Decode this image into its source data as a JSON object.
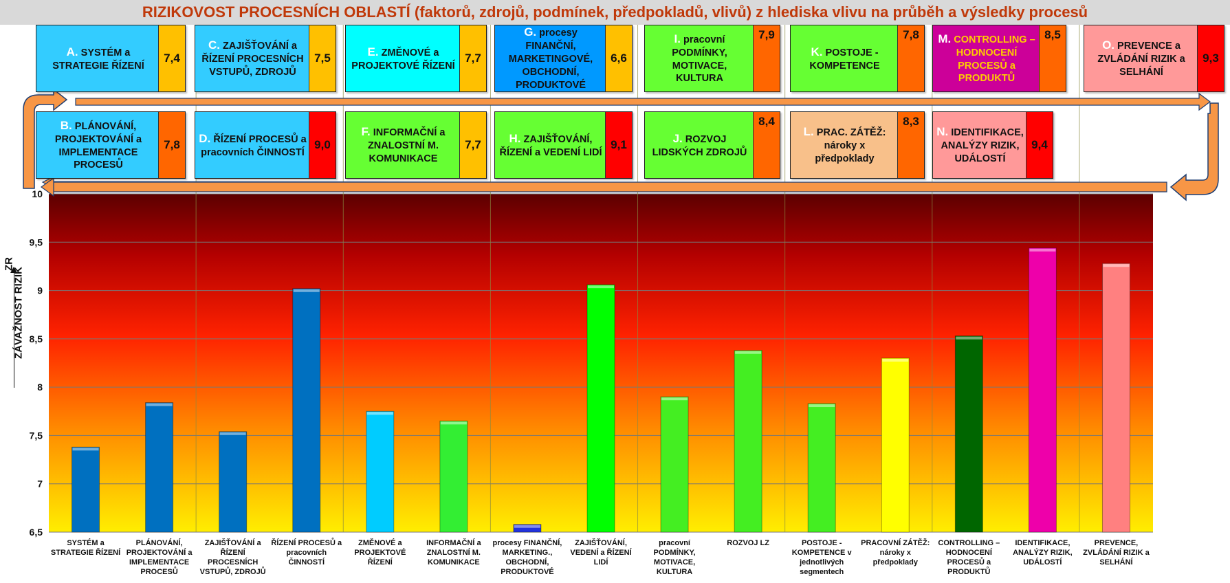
{
  "title": "RIZIKOVOST PROCESNÍCH OBLASTÍ (faktorů, zdrojů, podmínek, předpokladů, vlivů) z hlediska vlivu na průběh a výsledky procesů",
  "y_axis": {
    "label": "ZÁVAŽNOST RIZIK",
    "unit": "ZR"
  },
  "colors": {
    "title": "#c0390a",
    "arrow_fill": "#f79646",
    "arrow_stroke": "#1f3f73",
    "score_yellow": "#ffc000",
    "score_orange": "#ff6600",
    "score_red": "#ff0000",
    "gradient_top": "#5c0000",
    "gradient_mid": "#ff2200",
    "gradient_bottom": "#ffee00"
  },
  "cards": [
    {
      "id": "A",
      "letter": "A.",
      "label": "SYSTÉM a STRATEGIE ŘÍZENÍ",
      "score": "7,4",
      "bg": "#33ccff",
      "score_bg": "#ffc000",
      "text_color": "#111111"
    },
    {
      "id": "C",
      "letter": "C.",
      "label": "ZAJIŠŤOVÁNÍ a ŘÍZENÍ PROCESNÍCH VSTUPŮ, ZDROJŮ",
      "score": "7,5",
      "bg": "#33ccff",
      "score_bg": "#ffc000",
      "text_color": "#111111"
    },
    {
      "id": "E",
      "letter": "E.",
      "label": "ZMĚNOVÉ a PROJEKTOVÉ ŘÍZENÍ",
      "score": "7,7",
      "bg": "#00ffff",
      "score_bg": "#ffc000",
      "text_color": "#111111"
    },
    {
      "id": "G",
      "letter": "G.",
      "label": "procesy FINANČNÍ, MARKETINGOVÉ, OBCHODNÍ, PRODUKTOVÉ",
      "score": "6,6",
      "bg": "#0099ff",
      "score_bg": "#ffc000",
      "text_color": "#111111"
    },
    {
      "id": "I",
      "letter": "I.",
      "label": "pracovní PODMÍNKY, MOTIVACE, KULTURA",
      "score": "7,9",
      "bg": "#66ff33",
      "score_bg": "#ff6600",
      "text_color": "#111111"
    },
    {
      "id": "K",
      "letter": "K.",
      "label": "POSTOJE - KOMPETENCE",
      "score": "7,8",
      "bg": "#66ff33",
      "score_bg": "#ff6600",
      "text_color": "#111111"
    },
    {
      "id": "M",
      "letter": "M.",
      "label": "CONTROLLING – HODNOCENÍ PROCESŮ a PRODUKTŮ",
      "score": "8,5",
      "bg": "#cc0099",
      "score_bg": "#ff6600",
      "text_color": "#ffcc00"
    },
    {
      "id": "O",
      "letter": "O.",
      "label": "PREVENCE a ZVLÁDÁNÍ RIZIK a SELHÁNÍ",
      "score": "9,3",
      "bg": "#ff9999",
      "score_bg": "#ff0000",
      "text_color": "#111111"
    },
    {
      "id": "B",
      "letter": "B.",
      "label": "PLÁNOVÁNÍ, PROJEKTOVÁNÍ a IMPLEMENTACE PROCESŮ",
      "score": "7,8",
      "bg": "#33ccff",
      "score_bg": "#ff6600",
      "text_color": "#111111"
    },
    {
      "id": "D",
      "letter": "D.",
      "label": "ŘÍZENÍ PROCESŮ a pracovních ČINNOSTÍ",
      "score": "9,0",
      "bg": "#33ccff",
      "score_bg": "#ff0000",
      "text_color": "#111111"
    },
    {
      "id": "F",
      "letter": "F.",
      "label": "INFORMAČNÍ a ZNALOSTNÍ M. KOMUNIKACE",
      "score": "7,7",
      "bg": "#66ff33",
      "score_bg": "#ffc000",
      "text_color": "#111111"
    },
    {
      "id": "H",
      "letter": "H.",
      "label": "ZAJIŠŤOVÁNÍ, ŘÍZENÍ a VEDENÍ LIDÍ",
      "score": "9,1",
      "bg": "#66ff33",
      "score_bg": "#ff0000",
      "text_color": "#111111"
    },
    {
      "id": "J",
      "letter": "J.",
      "label": "ROZVOJ LIDSKÝCH ZDROJŮ",
      "score": "8,4",
      "bg": "#66ff33",
      "score_bg": "#ff6600",
      "text_color": "#111111"
    },
    {
      "id": "L",
      "letter": "L.",
      "label": "PRAC. ZÁTĚŽ: nároky x předpoklady",
      "score": "8,3",
      "bg": "#f8c08a",
      "score_bg": "#ff6600",
      "text_color": "#111111"
    },
    {
      "id": "N",
      "letter": "N.",
      "label": "IDENTIFIKACE, ANALÝZY RIZIK, UDÁLOSTÍ",
      "score": "9,4",
      "bg": "#ff9999",
      "score_bg": "#ff0000",
      "text_color": "#111111"
    }
  ],
  "chart_data": {
    "type": "bar",
    "title": "",
    "xlabel": "",
    "ylabel": "ZÁVAŽNOST RIZIK",
    "ylim": [
      6.5,
      10
    ],
    "yticks": [
      6.5,
      7,
      7.5,
      8,
      8.5,
      9,
      9.5,
      10
    ],
    "ytick_labels": [
      "6,5",
      "7",
      "7,5",
      "8",
      "8,5",
      "9",
      "9,5",
      "10"
    ],
    "grid": true,
    "legend": "none",
    "categories": [
      "SYSTÉM a STRATEGIE ŘÍZENÍ",
      "PLÁNOVÁNÍ, PROJEKTOVÁNÍ a IMPLEMENTACE PROCESŮ",
      "ZAJIŠŤOVÁNÍ a ŘÍZENÍ PROCESNÍCH VSTUPŮ, ZDROJŮ",
      "ŘÍZENÍ PROCESŮ a pracovních ČINNOSTÍ",
      "ZMĚNOVÉ a PROJEKTOVÉ ŘÍZENÍ",
      "INFORMAČNÍ a ZNALOSTNÍ M. KOMUNIKACE",
      "procesy FINANČNÍ, MARKETING., OBCHODNÍ, PRODUKTOVÉ",
      "ZAJIŠŤOVÁNÍ, VEDENÍ a ŘÍZENÍ LIDÍ",
      "pracovní PODMÍNKY, MOTIVACE, KULTURA",
      "ROZVOJ LZ",
      "POSTOJE - KOMPETENCE v jednotlivých segmentech",
      "PRACOVNÍ ZÁTĚŽ: nároky x předpoklady",
      "CONTROLLING – HODNOCENÍ PROCESŮ a PRODUKTŮ",
      "IDENTIFIKACE, ANALÝZY RIZIK, UDÁLOSTÍ",
      "PREVENCE, ZVLÁDÁNÍ RIZIK a SELHÁNÍ"
    ],
    "values": [
      7.38,
      7.84,
      7.54,
      9.02,
      7.75,
      7.65,
      6.58,
      9.06,
      7.9,
      8.38,
      7.83,
      8.3,
      8.53,
      9.44,
      9.28
    ],
    "bar_colors": [
      "#0070c0",
      "#0070c0",
      "#0070c0",
      "#0070c0",
      "#00ccff",
      "#33ee33",
      "#2233dd",
      "#00ff00",
      "#44ee22",
      "#44ee22",
      "#44ee22",
      "#ffff00",
      "#006600",
      "#ee00aa",
      "#ff8080"
    ]
  }
}
